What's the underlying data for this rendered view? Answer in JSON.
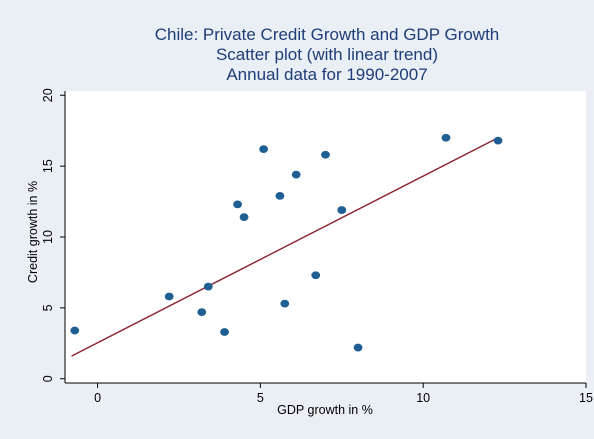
{
  "chart_data": {
    "type": "scatter",
    "title_lines": [
      "Chile: Private Credit Growth and GDP Growth",
      "Scatter plot (with linear trend)",
      "Annual data for 1990-2007"
    ],
    "xlabel": "GDP growth in %",
    "ylabel": "Credit growth in %",
    "xlim": [
      -1,
      15
    ],
    "ylim": [
      -0.3,
      20.3
    ],
    "xticks": [
      0,
      5,
      10,
      15
    ],
    "yticks": [
      0,
      5,
      10,
      15,
      20
    ],
    "grid": false,
    "points": [
      {
        "x": -0.7,
        "y": 3.4
      },
      {
        "x": 2.2,
        "y": 5.8
      },
      {
        "x": 3.2,
        "y": 4.7
      },
      {
        "x": 3.4,
        "y": 6.5
      },
      {
        "x": 3.9,
        "y": 3.3
      },
      {
        "x": 4.3,
        "y": 12.3
      },
      {
        "x": 4.5,
        "y": 11.4
      },
      {
        "x": 5.1,
        "y": 16.2
      },
      {
        "x": 5.6,
        "y": 12.9
      },
      {
        "x": 5.75,
        "y": 5.3
      },
      {
        "x": 6.1,
        "y": 14.4
      },
      {
        "x": 6.7,
        "y": 7.3
      },
      {
        "x": 7.0,
        "y": 15.8
      },
      {
        "x": 7.5,
        "y": 11.9
      },
      {
        "x": 8.0,
        "y": 2.2
      },
      {
        "x": 10.7,
        "y": 17.0
      },
      {
        "x": 12.3,
        "y": 16.8
      }
    ],
    "trend_line": {
      "x": [
        -0.8,
        12.3
      ],
      "y": [
        1.6,
        17.0
      ]
    },
    "colors": {
      "point": "#1f5f94",
      "trend": "#8b2330",
      "outer_background": "#e9eff4",
      "plot_background": "#ffffff",
      "title": "#1f3d78"
    }
  }
}
